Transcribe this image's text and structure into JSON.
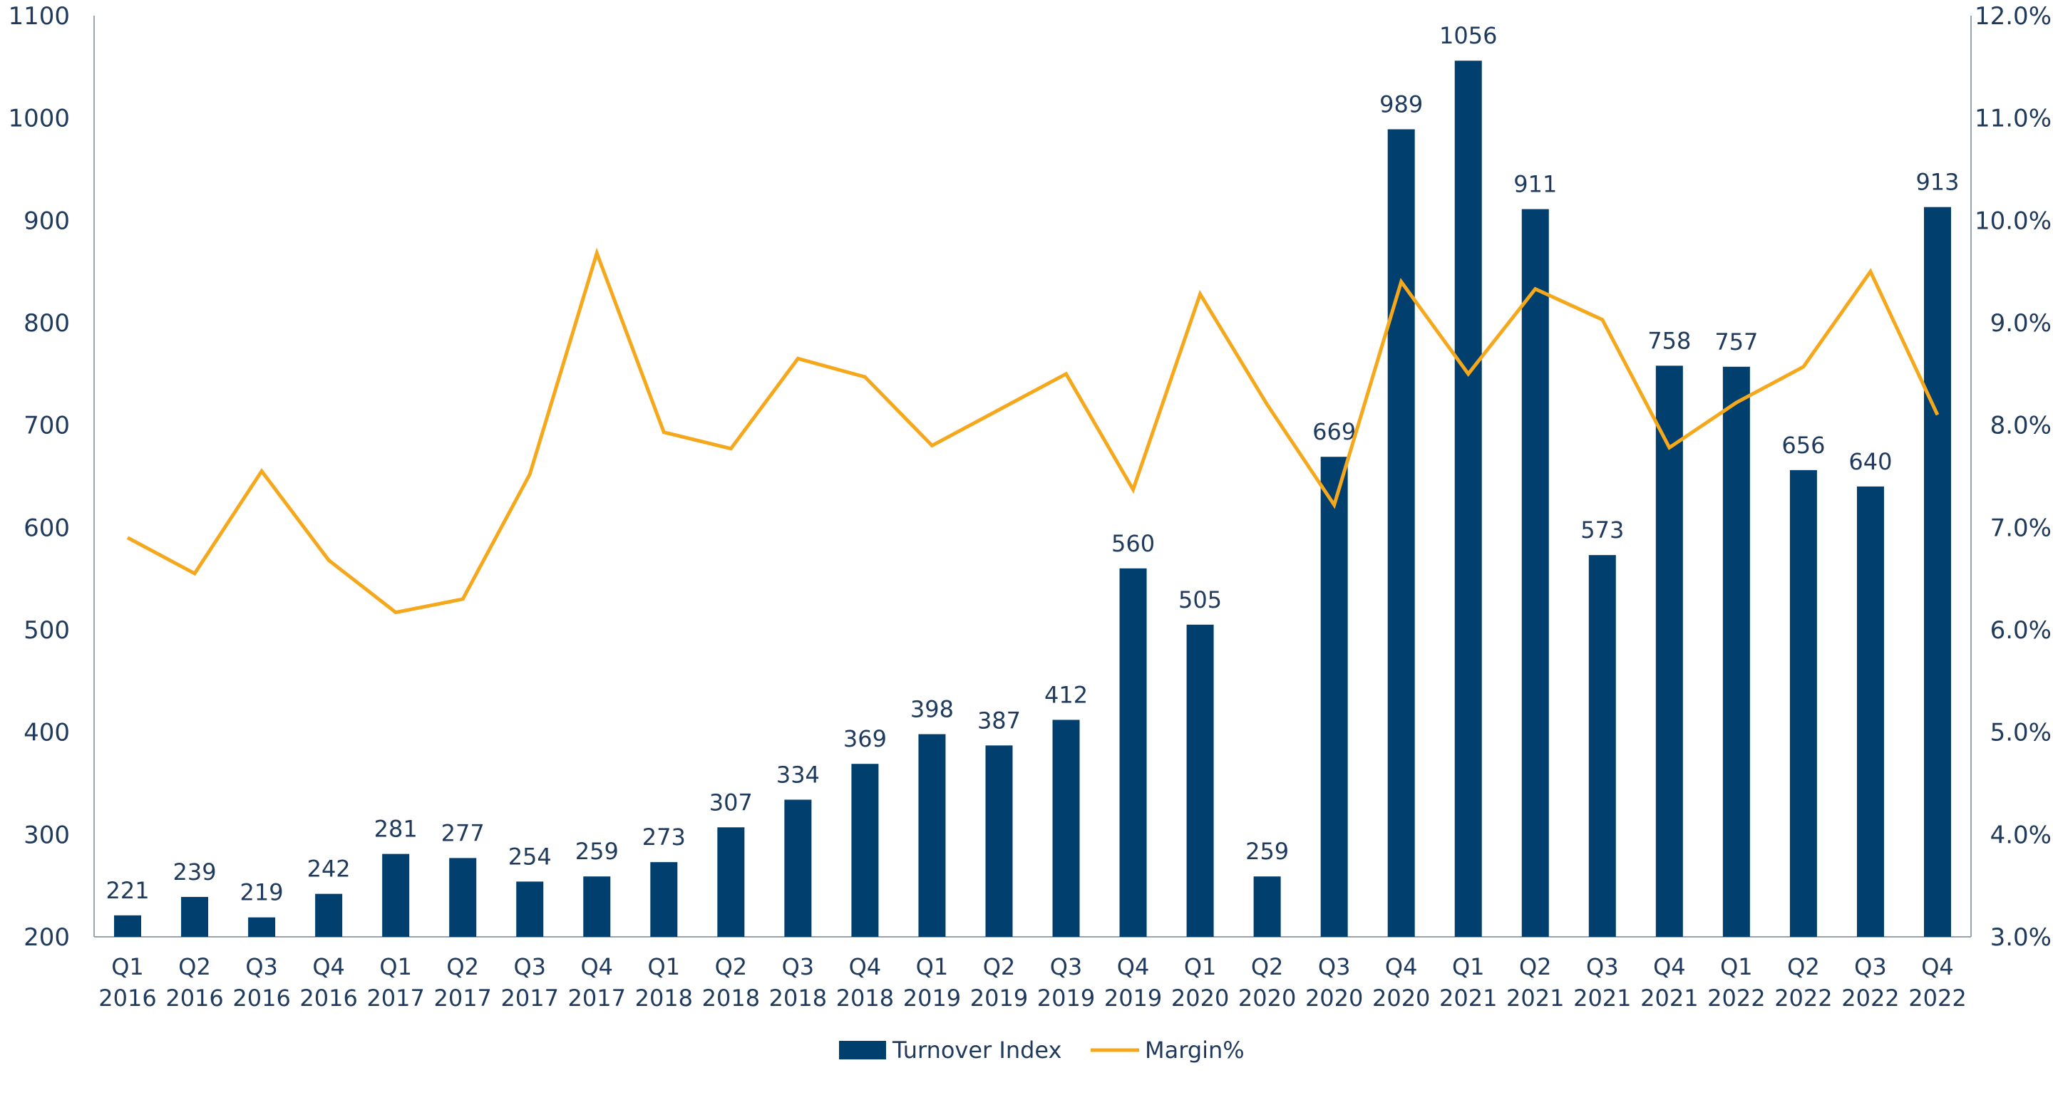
{
  "chart_data": {
    "type": "bar",
    "categories": [
      [
        "Q1",
        "2016"
      ],
      [
        "Q2",
        "2016"
      ],
      [
        "Q3",
        "2016"
      ],
      [
        "Q4",
        "2016"
      ],
      [
        "Q1",
        "2017"
      ],
      [
        "Q2",
        "2017"
      ],
      [
        "Q3",
        "2017"
      ],
      [
        "Q4",
        "2017"
      ],
      [
        "Q1",
        "2018"
      ],
      [
        "Q2",
        "2018"
      ],
      [
        "Q3",
        "2018"
      ],
      [
        "Q4",
        "2018"
      ],
      [
        "Q1",
        "2019"
      ],
      [
        "Q2",
        "2019"
      ],
      [
        "Q3",
        "2019"
      ],
      [
        "Q4",
        "2019"
      ],
      [
        "Q1",
        "2020"
      ],
      [
        "Q2",
        "2020"
      ],
      [
        "Q3",
        "2020"
      ],
      [
        "Q4",
        "2020"
      ],
      [
        "Q1",
        "2021"
      ],
      [
        "Q2",
        "2021"
      ],
      [
        "Q3",
        "2021"
      ],
      [
        "Q4",
        "2021"
      ],
      [
        "Q1",
        "2022"
      ],
      [
        "Q2",
        "2022"
      ],
      [
        "Q3",
        "2022"
      ],
      [
        "Q4",
        "2022"
      ]
    ],
    "series": [
      {
        "name": "Turnover Index",
        "kind": "bar",
        "axis": "left",
        "color": "#003f6e",
        "values": [
          221,
          239,
          219,
          242,
          281,
          277,
          254,
          259,
          273,
          307,
          334,
          369,
          398,
          387,
          412,
          560,
          505,
          259,
          669,
          989,
          1056,
          911,
          573,
          758,
          757,
          656,
          640,
          913
        ],
        "labels": [
          "221",
          "239",
          "219",
          "242",
          "281",
          "277",
          "254",
          "259",
          "273",
          "307",
          "334",
          "369",
          "398",
          "387",
          "412",
          "560",
          "505",
          "259",
          "669",
          "989",
          "1056",
          "911",
          "573",
          "758",
          "757",
          "656",
          "640",
          "913"
        ]
      },
      {
        "name": "Margin%",
        "kind": "line",
        "axis": "right",
        "color": "#f5a81c",
        "values": [
          6.9,
          6.55,
          7.55,
          6.68,
          6.17,
          6.3,
          7.52,
          9.68,
          7.93,
          7.77,
          8.65,
          8.47,
          7.8,
          8.15,
          8.5,
          7.37,
          9.28,
          8.2,
          7.22,
          9.4,
          8.5,
          9.33,
          9.03,
          7.78,
          8.22,
          8.57,
          9.5,
          8.1
        ]
      }
    ],
    "y_left": {
      "min": 200,
      "max": 1100,
      "ticks": [
        "200",
        "300",
        "400",
        "500",
        "600",
        "700",
        "800",
        "900",
        "1000",
        "1100"
      ]
    },
    "y_right": {
      "min": 3.0,
      "max": 12.0,
      "ticks": [
        "3.0%",
        "4.0%",
        "5.0%",
        "6.0%",
        "7.0%",
        "8.0%",
        "9.0%",
        "10.0%",
        "11.0%",
        "12.0%"
      ]
    },
    "grid": false,
    "legend": "bottom-center"
  }
}
